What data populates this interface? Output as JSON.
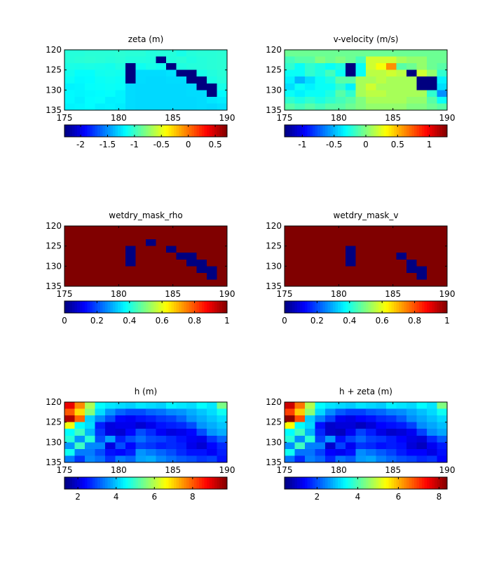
{
  "figure": {
    "background": "#ffffff"
  },
  "chart_data": [
    {
      "type": "heatmap",
      "title": "zeta (m)",
      "xlabel": "",
      "ylabel": "",
      "xlim": [
        175,
        190
      ],
      "ylim": [
        120,
        135
      ],
      "y_direction": "reversed",
      "xticks": [
        "175",
        "180",
        "185",
        "190"
      ],
      "yticks": [
        "120",
        "125",
        "130",
        "135"
      ],
      "colormap": "jet",
      "clim": [
        -2.3,
        0.72
      ],
      "colorbar_ticks": [
        "-2",
        "-1.5",
        "-1",
        "-0.5",
        "0",
        "0.5"
      ],
      "colorbar_tick_values": [
        -2,
        -1.5,
        -1,
        -0.5,
        0,
        0.5
      ],
      "colorbar_position": "bottom",
      "grid": false,
      "values": [
        [
          -1.06,
          -1.06,
          -1.05,
          -1.05,
          -1.05,
          -1.04,
          -1.05,
          -1.05,
          -1.07,
          -1.06,
          -1.06,
          -1.1,
          -1.06,
          -1.05,
          -1.05,
          -1.04
        ],
        [
          -1.06,
          -1.05,
          -1.04,
          -1.05,
          -1.06,
          -1.05,
          -1.07,
          -1.07,
          -1.08,
          -2.3,
          -1.07,
          -1.05,
          -1.08,
          -1.06,
          -1.05,
          -1.04
        ],
        [
          -1.09,
          -1.1,
          -1.09,
          -1.1,
          -1.11,
          -1.08,
          -2.3,
          -1.13,
          -1.1,
          -1.12,
          -2.3,
          -1.08,
          -1.06,
          -1.06,
          -1.05,
          -1.04
        ],
        [
          -1.12,
          -1.16,
          -1.16,
          -1.12,
          -1.11,
          -1.12,
          -2.3,
          -1.27,
          -1.27,
          -1.27,
          -1.25,
          -2.3,
          -2.3,
          -1.1,
          -1.07,
          -1.05
        ],
        [
          -1.14,
          -1.18,
          -1.17,
          -1.14,
          -1.13,
          -1.14,
          -2.3,
          -1.27,
          -1.28,
          -1.28,
          -1.27,
          -1.27,
          -2.3,
          -2.3,
          -1.09,
          -1.06
        ],
        [
          -1.2,
          -1.19,
          -1.16,
          -1.15,
          -1.14,
          -1.15,
          -1.27,
          -1.28,
          -1.28,
          -1.28,
          -1.28,
          -1.28,
          -1.27,
          -2.3,
          -2.3,
          -1.1
        ],
        [
          -1.18,
          -1.19,
          -1.18,
          -1.17,
          -1.16,
          -1.2,
          -1.27,
          -1.28,
          -1.28,
          -1.28,
          -1.28,
          -1.28,
          -1.27,
          -1.27,
          -2.3,
          -1.18
        ],
        [
          -1.18,
          -1.21,
          -1.17,
          -1.16,
          -1.21,
          -1.2,
          -1.27,
          -1.28,
          -1.28,
          -1.28,
          -1.28,
          -1.28,
          -1.28,
          -1.27,
          -1.24,
          -1.22
        ],
        [
          -1.2,
          -1.19,
          -1.17,
          -1.21,
          -1.2,
          -1.22,
          -1.27,
          -1.28,
          -1.28,
          -1.28,
          -1.28,
          -1.28,
          -1.28,
          -1.27,
          -1.28,
          -1.26
        ]
      ]
    },
    {
      "type": "heatmap",
      "title": "v-velocity (m/s)",
      "xlabel": "",
      "ylabel": "",
      "xlim": [
        175,
        190
      ],
      "ylim": [
        120,
        135
      ],
      "y_direction": "reversed",
      "xticks": [
        "175",
        "180",
        "185",
        "190"
      ],
      "yticks": [
        "120",
        "125",
        "130",
        "135"
      ],
      "colormap": "jet",
      "clim": [
        -1.28,
        1.28
      ],
      "colorbar_ticks": [
        "-1",
        "-0.5",
        "0",
        "0.5",
        "1"
      ],
      "colorbar_tick_values": [
        -1,
        -0.5,
        0,
        0.5,
        1
      ],
      "colorbar_position": "bottom",
      "grid": false,
      "values": [
        [
          -0.05,
          -0.05,
          -0.05,
          -0.05,
          -0.05,
          -0.05,
          -0.05,
          -0.05,
          -0.05,
          -0.05,
          -0.05,
          -0.05,
          -0.05,
          -0.05,
          -0.05,
          -0.05
        ],
        [
          -0.15,
          -0.1,
          -0.1,
          0.0,
          -0.05,
          0.0,
          -0.05,
          -0.15,
          0.2,
          0.2,
          0.2,
          0.1,
          0.05,
          0.05,
          -0.05,
          -0.05
        ],
        [
          -0.2,
          -0.3,
          -0.2,
          -0.25,
          -0.3,
          -0.25,
          -1.28,
          -0.3,
          0.2,
          0.3,
          0.6,
          -0.1,
          -0.05,
          0.05,
          -0.05,
          -0.1
        ],
        [
          -0.3,
          -0.3,
          -0.2,
          -0.25,
          -0.15,
          -0.3,
          -1.28,
          -0.3,
          0.15,
          0.15,
          0.2,
          0.15,
          -1.28,
          0.2,
          0.05,
          -0.2
        ],
        [
          -0.35,
          -0.5,
          -0.4,
          -0.3,
          -0.25,
          -0.1,
          -0.1,
          0.1,
          0.1,
          0.15,
          0.1,
          0.1,
          0.1,
          -1.28,
          -1.28,
          -0.35
        ],
        [
          -0.4,
          -0.3,
          -0.35,
          -0.3,
          -0.3,
          -0.2,
          -0.35,
          0.1,
          0.2,
          0.1,
          0.1,
          0.1,
          0.1,
          -1.28,
          -1.28,
          -0.4
        ],
        [
          -0.3,
          -0.35,
          -0.3,
          -0.3,
          -0.25,
          -0.1,
          -0.2,
          0.1,
          0.15,
          0.15,
          0.1,
          0.1,
          0.1,
          0.1,
          -0.2,
          -0.6
        ],
        [
          -0.2,
          -0.25,
          -0.2,
          -0.25,
          -0.2,
          -0.15,
          -0.1,
          0.0,
          0.1,
          0.1,
          0.1,
          0.1,
          0.05,
          0.05,
          -0.1,
          -0.3
        ],
        [
          -0.1,
          -0.15,
          -0.1,
          -0.15,
          -0.1,
          -0.1,
          -0.05,
          0.0,
          0.05,
          0.05,
          0.05,
          0.05,
          0.0,
          0.0,
          -0.05,
          -0.1
        ]
      ]
    },
    {
      "type": "heatmap",
      "title": "wetdry_mask_rho",
      "xlabel": "",
      "ylabel": "",
      "xlim": [
        175,
        190
      ],
      "ylim": [
        120,
        135
      ],
      "y_direction": "reversed",
      "xticks": [
        "175",
        "180",
        "185",
        "190"
      ],
      "yticks": [
        "120",
        "125",
        "130",
        "135"
      ],
      "colormap": "jet",
      "clim": [
        0,
        1
      ],
      "colorbar_ticks": [
        "0",
        "0.2",
        "0.4",
        "0.6",
        "0.8",
        "1"
      ],
      "colorbar_tick_values": [
        0,
        0.2,
        0.4,
        0.6,
        0.8,
        1
      ],
      "colorbar_position": "bottom",
      "grid": false,
      "values": [
        [
          1,
          1,
          1,
          1,
          1,
          1,
          1,
          1,
          1,
          1,
          1,
          1,
          1,
          1,
          1,
          1
        ],
        [
          1,
          1,
          1,
          1,
          1,
          1,
          1,
          1,
          1,
          1,
          1,
          1,
          1,
          1,
          1,
          1
        ],
        [
          1,
          1,
          1,
          1,
          1,
          1,
          1,
          1,
          0,
          1,
          1,
          1,
          1,
          1,
          1,
          1
        ],
        [
          1,
          1,
          1,
          1,
          1,
          1,
          0,
          1,
          1,
          1,
          0,
          1,
          1,
          1,
          1,
          1
        ],
        [
          1,
          1,
          1,
          1,
          1,
          1,
          0,
          1,
          1,
          1,
          1,
          0,
          0,
          1,
          1,
          1
        ],
        [
          1,
          1,
          1,
          1,
          1,
          1,
          0,
          1,
          1,
          1,
          1,
          1,
          0,
          0,
          1,
          1
        ],
        [
          1,
          1,
          1,
          1,
          1,
          1,
          1,
          1,
          1,
          1,
          1,
          1,
          1,
          0,
          0,
          1
        ],
        [
          1,
          1,
          1,
          1,
          1,
          1,
          1,
          1,
          1,
          1,
          1,
          1,
          1,
          1,
          0,
          1
        ],
        [
          1,
          1,
          1,
          1,
          1,
          1,
          1,
          1,
          1,
          1,
          1,
          1,
          1,
          1,
          1,
          1
        ]
      ]
    },
    {
      "type": "heatmap",
      "title": "wetdry_mask_v",
      "xlabel": "",
      "ylabel": "",
      "xlim": [
        175,
        190
      ],
      "ylim": [
        120,
        135
      ],
      "y_direction": "reversed",
      "xticks": [
        "175",
        "180",
        "185",
        "190"
      ],
      "yticks": [
        "120",
        "125",
        "130",
        "135"
      ],
      "colormap": "jet",
      "clim": [
        0,
        1
      ],
      "colorbar_ticks": [
        "0",
        "0.2",
        "0.4",
        "0.6",
        "0.8",
        "1"
      ],
      "colorbar_tick_values": [
        0,
        0.2,
        0.4,
        0.6,
        0.8,
        1
      ],
      "colorbar_position": "bottom",
      "grid": false,
      "values": [
        [
          1,
          1,
          1,
          1,
          1,
          1,
          1,
          1,
          1,
          1,
          1,
          1,
          1,
          1,
          1,
          1
        ],
        [
          1,
          1,
          1,
          1,
          1,
          1,
          1,
          1,
          1,
          1,
          1,
          1,
          1,
          1,
          1,
          1
        ],
        [
          1,
          1,
          1,
          1,
          1,
          1,
          1,
          1,
          1,
          1,
          1,
          1,
          1,
          1,
          1,
          1
        ],
        [
          1,
          1,
          1,
          1,
          1,
          1,
          0,
          1,
          1,
          1,
          1,
          1,
          1,
          1,
          1,
          1
        ],
        [
          1,
          1,
          1,
          1,
          1,
          1,
          0,
          1,
          1,
          1,
          1,
          0,
          1,
          1,
          1,
          1
        ],
        [
          1,
          1,
          1,
          1,
          1,
          1,
          0,
          1,
          1,
          1,
          1,
          1,
          0,
          1,
          1,
          1
        ],
        [
          1,
          1,
          1,
          1,
          1,
          1,
          1,
          1,
          1,
          1,
          1,
          1,
          0,
          0,
          1,
          1
        ],
        [
          1,
          1,
          1,
          1,
          1,
          1,
          1,
          1,
          1,
          1,
          1,
          1,
          1,
          0,
          1,
          1
        ],
        [
          1,
          1,
          1,
          1,
          1,
          1,
          1,
          1,
          1,
          1,
          1,
          1,
          1,
          1,
          1,
          1
        ]
      ]
    },
    {
      "type": "heatmap",
      "title": "h (m)",
      "xlabel": "",
      "ylabel": "",
      "xlim": [
        175,
        190
      ],
      "ylim": [
        120,
        135
      ],
      "y_direction": "reversed",
      "xticks": [
        "175",
        "180",
        "185",
        "190"
      ],
      "yticks": [
        "120",
        "125",
        "130",
        "135"
      ],
      "colormap": "jet",
      "clim": [
        1.3,
        9.8
      ],
      "colorbar_ticks": [
        "2",
        "4",
        "6",
        "8"
      ],
      "colorbar_tick_values": [
        2,
        4,
        6,
        8
      ],
      "colorbar_position": "bottom",
      "grid": false,
      "values": [
        [
          8.9,
          7.6,
          5.9,
          4.5,
          4.3,
          4.2,
          4.1,
          4.3,
          4.2,
          4.1,
          4.4,
          4.3,
          4.2,
          4.5,
          4.3,
          5.5
        ],
        [
          8.0,
          6.9,
          5.6,
          4.2,
          3.6,
          3.2,
          3.0,
          3.0,
          3.2,
          3.3,
          3.5,
          3.6,
          3.8,
          4.0,
          4.2,
          4.6
        ],
        [
          9.4,
          7.9,
          4.1,
          3.5,
          3.0,
          2.4,
          2.3,
          2.5,
          2.6,
          2.8,
          2.9,
          3.2,
          3.6,
          3.8,
          4.0,
          4.2
        ],
        [
          6.5,
          4.5,
          4.2,
          2.6,
          2.1,
          2.2,
          2.2,
          2.0,
          2.2,
          2.5,
          2.6,
          2.7,
          3.0,
          3.6,
          3.8,
          4.0
        ],
        [
          4.5,
          5.0,
          3.9,
          2.8,
          2.1,
          2.0,
          2.4,
          3.0,
          2.7,
          2.3,
          2.1,
          2.2,
          2.4,
          3.0,
          3.6,
          3.8
        ],
        [
          4.8,
          3.6,
          4.8,
          3.0,
          3.7,
          2.6,
          3.0,
          3.3,
          3.0,
          2.9,
          2.7,
          2.5,
          2.3,
          2.2,
          2.8,
          3.2
        ],
        [
          3.6,
          5.0,
          3.5,
          3.5,
          2.1,
          3.0,
          2.4,
          2.9,
          2.8,
          2.6,
          2.7,
          2.6,
          2.2,
          2.0,
          2.4,
          2.7
        ],
        [
          4.6,
          3.4,
          3.4,
          3.0,
          2.5,
          2.4,
          2.6,
          3.6,
          3.4,
          3.2,
          3.0,
          2.7,
          2.5,
          2.5,
          2.3,
          2.6
        ],
        [
          3.4,
          2.8,
          3.5,
          3.3,
          2.8,
          3.4,
          3.2,
          3.7,
          3.8,
          3.5,
          3.3,
          3.1,
          3.0,
          2.8,
          2.9,
          2.5
        ]
      ]
    },
    {
      "type": "heatmap",
      "title": "h + zeta (m)",
      "xlabel": "",
      "ylabel": "",
      "xlim": [
        175,
        190
      ],
      "ylim": [
        120,
        135
      ],
      "y_direction": "reversed",
      "xticks": [
        "175",
        "180",
        "185",
        "190"
      ],
      "yticks": [
        "120",
        "125",
        "130",
        "135"
      ],
      "colormap": "jet",
      "clim": [
        0.4,
        8.4
      ],
      "colorbar_ticks": [
        "2",
        "4",
        "6",
        "8"
      ],
      "colorbar_tick_values": [
        2,
        4,
        6,
        8
      ],
      "colorbar_position": "bottom",
      "grid": false,
      "values": [
        [
          7.8,
          6.5,
          4.8,
          3.4,
          3.2,
          3.1,
          3.0,
          3.2,
          3.1,
          3.0,
          3.3,
          3.2,
          3.1,
          3.4,
          3.2,
          4.4
        ],
        [
          6.9,
          5.8,
          4.5,
          3.1,
          2.5,
          2.1,
          1.9,
          1.9,
          2.1,
          2.2,
          2.4,
          2.5,
          2.7,
          2.9,
          3.1,
          3.5
        ],
        [
          8.3,
          6.8,
          3.0,
          2.4,
          1.9,
          1.3,
          1.2,
          1.4,
          1.5,
          1.7,
          1.8,
          2.1,
          2.5,
          2.7,
          2.9,
          3.1
        ],
        [
          5.4,
          3.4,
          3.1,
          1.5,
          1.0,
          1.1,
          1.1,
          0.9,
          1.1,
          1.4,
          1.5,
          1.6,
          1.9,
          2.5,
          2.7,
          2.9
        ],
        [
          3.4,
          3.9,
          2.8,
          1.7,
          1.0,
          0.9,
          1.3,
          1.9,
          1.6,
          1.2,
          1.0,
          1.1,
          1.3,
          1.9,
          2.5,
          2.7
        ],
        [
          3.7,
          2.5,
          3.7,
          1.9,
          2.6,
          1.5,
          1.9,
          2.2,
          1.9,
          1.8,
          1.6,
          1.4,
          1.2,
          1.1,
          1.7,
          2.1
        ],
        [
          2.5,
          3.9,
          2.4,
          2.4,
          1.0,
          1.9,
          1.3,
          1.8,
          1.7,
          1.5,
          1.6,
          1.5,
          1.1,
          0.9,
          1.3,
          1.6
        ],
        [
          3.5,
          2.3,
          2.3,
          1.9,
          1.4,
          1.3,
          1.5,
          2.5,
          2.3,
          2.1,
          1.9,
          1.6,
          1.4,
          1.4,
          1.2,
          1.5
        ],
        [
          2.3,
          1.7,
          2.4,
          2.2,
          1.7,
          2.3,
          2.1,
          2.6,
          2.7,
          2.4,
          2.2,
          2.0,
          1.9,
          1.7,
          1.8,
          1.4
        ]
      ]
    }
  ]
}
